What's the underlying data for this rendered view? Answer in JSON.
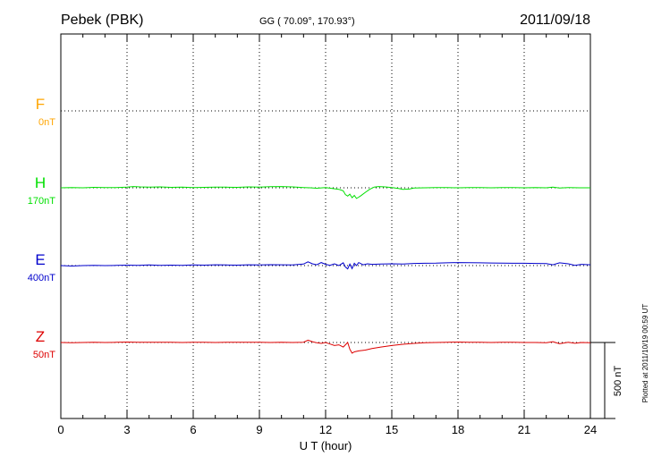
{
  "header": {
    "station": "Pebek (PBK)",
    "coords": "GG ( 70.09°, 170.93°)",
    "date": "2011/09/18"
  },
  "footer": {
    "plotted": "Plotted at 2011/10/19 00:59 UT"
  },
  "chart_data": {
    "type": "line",
    "title": "Pebek (PBK)",
    "xlabel": "U T (hour)",
    "ylabel": "",
    "xlim": [
      0,
      24
    ],
    "x_ticks": [
      "0",
      "3",
      "6",
      "9",
      "12",
      "15",
      "18",
      "21",
      "24"
    ],
    "grid": true,
    "scale_bar": {
      "label": "500 nT",
      "value_nT": 500
    },
    "colors": {
      "F": "#ffa500",
      "H": "#00e000",
      "E": "#0000cc",
      "Z": "#dd0000"
    },
    "series": [
      {
        "name": "F",
        "offset_label": "0nT",
        "baseline_nT": 0,
        "x": [],
        "y": []
      },
      {
        "name": "H",
        "offset_label": "170nT",
        "baseline_nT": 170,
        "x": [
          0,
          0.5,
          1,
          1.5,
          2,
          2.5,
          3,
          3.3,
          3.6,
          4,
          4.5,
          5,
          5.5,
          6,
          6.5,
          7,
          7.5,
          8,
          8.5,
          9,
          9.5,
          10,
          10.5,
          11,
          11.3,
          11.6,
          12,
          12.3,
          12.6,
          12.8,
          12.9,
          13.0,
          13.1,
          13.2,
          13.3,
          13.4,
          13.5,
          13.6,
          13.8,
          14.0,
          14.2,
          14.4,
          14.7,
          15.0,
          15.3,
          15.5,
          15.8,
          16.0,
          16.5,
          17,
          17.5,
          18,
          18.5,
          19,
          19.5,
          20,
          20.5,
          21,
          21.5,
          22,
          22.3,
          22.6,
          23,
          23.5,
          24
        ],
        "y": [
          170,
          172,
          170,
          173,
          171,
          172,
          175,
          178,
          176,
          174,
          176,
          173,
          175,
          172,
          173,
          175,
          174,
          173,
          176,
          174,
          177,
          178,
          176,
          172,
          170,
          167,
          171,
          165,
          160,
          150,
          125,
          115,
          128,
          105,
          120,
          100,
          108,
          118,
          140,
          160,
          175,
          178,
          176,
          172,
          165,
          160,
          162,
          168,
          170,
          172,
          171,
          170,
          172,
          171,
          170,
          172,
          171,
          170,
          171,
          170,
          175,
          168,
          172,
          170,
          170
        ]
      },
      {
        "name": "E",
        "offset_label": "400nT",
        "baseline_nT": 400,
        "x": [
          0,
          0.5,
          1,
          1.5,
          2,
          2.5,
          3,
          3.5,
          4,
          4.5,
          5,
          5.5,
          6,
          6.5,
          7,
          7.5,
          8,
          8.5,
          9,
          9.5,
          10,
          10.5,
          11,
          11.2,
          11.4,
          11.6,
          11.8,
          12,
          12.2,
          12.4,
          12.6,
          12.8,
          12.9,
          13.0,
          13.1,
          13.2,
          13.3,
          13.4,
          13.5,
          13.7,
          13.9,
          14.1,
          14.5,
          15,
          15.5,
          16,
          16.5,
          17,
          17.5,
          18,
          18.5,
          19,
          19.5,
          20,
          20.5,
          21,
          21.5,
          22,
          22.3,
          22.6,
          23,
          23.3,
          23.6,
          24
        ],
        "y": [
          400,
          397,
          400,
          402,
          400,
          401,
          403,
          402,
          404,
          402,
          403,
          402,
          404,
          403,
          405,
          404,
          403,
          405,
          404,
          406,
          405,
          404,
          410,
          425,
          412,
          405,
          420,
          408,
          402,
          412,
          400,
          418,
          390,
          378,
          410,
          380,
          415,
          400,
          420,
          405,
          412,
          408,
          410,
          412,
          410,
          414,
          415,
          416,
          418,
          420,
          419,
          418,
          417,
          416,
          415,
          415,
          414,
          413,
          405,
          418,
          412,
          402,
          408,
          405
        ]
      },
      {
        "name": "Z",
        "offset_label": "50nT",
        "baseline_nT": 50,
        "x": [
          0,
          0.5,
          1,
          1.5,
          2,
          2.5,
          3,
          3.5,
          4,
          4.5,
          5,
          5.5,
          6,
          6.5,
          7,
          7.5,
          8,
          8.5,
          9,
          9.5,
          10,
          10.5,
          11,
          11.2,
          11.4,
          11.6,
          11.8,
          12,
          12.2,
          12.4,
          12.6,
          12.8,
          13.0,
          13.1,
          13.2,
          13.3,
          13.5,
          13.8,
          14.1,
          14.5,
          15,
          15.5,
          16,
          16.5,
          17,
          17.5,
          18,
          18.5,
          19,
          19.5,
          20,
          20.5,
          21,
          21.5,
          22,
          22.3,
          22.6,
          23,
          23.3,
          23.6,
          24
        ],
        "y": [
          50,
          48,
          50,
          52,
          50,
          51,
          53,
          52,
          51,
          52,
          51,
          50,
          52,
          51,
          50,
          51,
          52,
          51,
          52,
          50,
          51,
          50,
          52,
          65,
          55,
          48,
          44,
          50,
          40,
          30,
          35,
          20,
          50,
          5,
          -20,
          -12,
          -5,
          0,
          10,
          20,
          30,
          38,
          44,
          48,
          50,
          52,
          53,
          52,
          51,
          50,
          52,
          51,
          50,
          50,
          48,
          55,
          42,
          52,
          45,
          50,
          48
        ]
      }
    ]
  }
}
